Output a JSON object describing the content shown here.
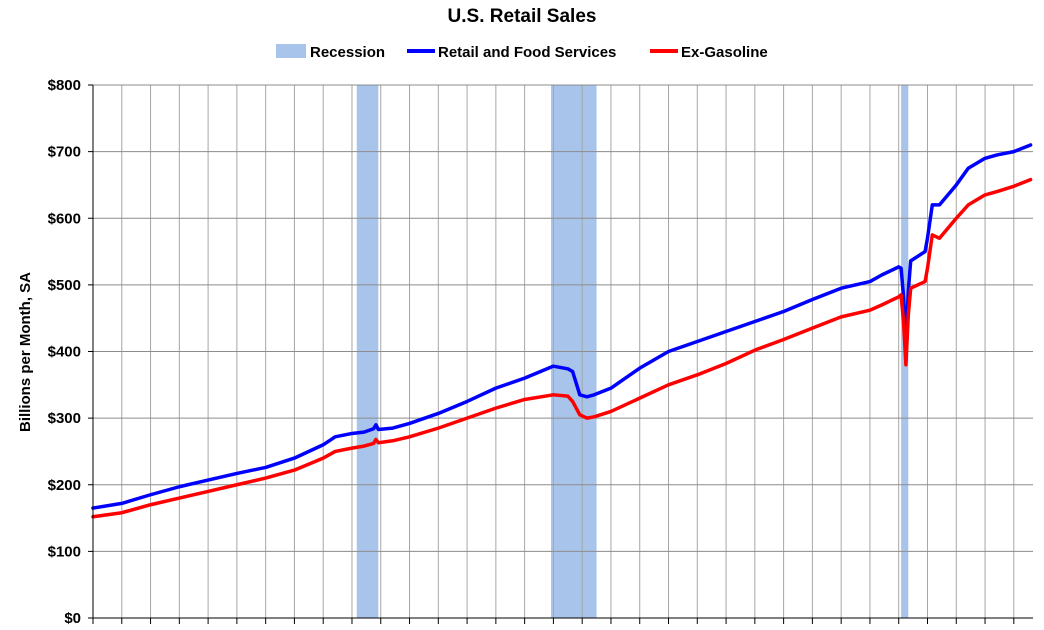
{
  "chart_data": {
    "type": "line",
    "title": "U.S. Retail Sales",
    "ylabel": "Billions per Month, SA",
    "ylim": [
      0,
      800
    ],
    "yticks": [
      0,
      100,
      200,
      300,
      400,
      500,
      600,
      700,
      800
    ],
    "ytick_labels": [
      "$0",
      "$100",
      "$200",
      "$300",
      "$400",
      "$500",
      "$600",
      "$700",
      "$800"
    ],
    "xlim": [
      "1992-01",
      "2024-09"
    ],
    "vertical_gridlines": "yearly",
    "horizontal_gridlines": true,
    "legend_position": "top-center",
    "recessions": [
      {
        "start": "2001-03",
        "end": "2001-11"
      },
      {
        "start": "2007-12",
        "end": "2009-06"
      },
      {
        "start": "2020-02",
        "end": "2020-04"
      }
    ],
    "series": [
      {
        "name": "Retail and Food Services",
        "color": "#0000ff",
        "points": [
          [
            "1992-01",
            165
          ],
          [
            "1993-01",
            172
          ],
          [
            "1994-01",
            185
          ],
          [
            "1995-01",
            197
          ],
          [
            "1996-01",
            207
          ],
          [
            "1997-01",
            217
          ],
          [
            "1998-01",
            226
          ],
          [
            "1999-01",
            240
          ],
          [
            "2000-01",
            260
          ],
          [
            "2000-06",
            272
          ],
          [
            "2001-01",
            277
          ],
          [
            "2001-06",
            279
          ],
          [
            "2001-10",
            284
          ],
          [
            "2001-11",
            290
          ],
          [
            "2001-12",
            283
          ],
          [
            "2002-06",
            285
          ],
          [
            "2003-01",
            292
          ],
          [
            "2004-01",
            307
          ],
          [
            "2005-01",
            325
          ],
          [
            "2006-01",
            345
          ],
          [
            "2007-01",
            360
          ],
          [
            "2008-01",
            378
          ],
          [
            "2008-07",
            374
          ],
          [
            "2008-09",
            370
          ],
          [
            "2008-12",
            335
          ],
          [
            "2009-03",
            332
          ],
          [
            "2009-06",
            335
          ],
          [
            "2010-01",
            345
          ],
          [
            "2011-01",
            375
          ],
          [
            "2012-01",
            400
          ],
          [
            "2013-01",
            415
          ],
          [
            "2014-01",
            430
          ],
          [
            "2015-01",
            445
          ],
          [
            "2016-01",
            460
          ],
          [
            "2017-01",
            478
          ],
          [
            "2018-01",
            495
          ],
          [
            "2019-01",
            505
          ],
          [
            "2019-06",
            515
          ],
          [
            "2020-01",
            527
          ],
          [
            "2020-02",
            525
          ],
          [
            "2020-03",
            483
          ],
          [
            "2020-04",
            411
          ],
          [
            "2020-05",
            491
          ],
          [
            "2020-06",
            536
          ],
          [
            "2020-12",
            550
          ],
          [
            "2021-01",
            570
          ],
          [
            "2021-03",
            620
          ],
          [
            "2021-06",
            620
          ],
          [
            "2022-01",
            650
          ],
          [
            "2022-06",
            675
          ],
          [
            "2023-01",
            690
          ],
          [
            "2023-06",
            695
          ],
          [
            "2024-01",
            700
          ],
          [
            "2024-08",
            710
          ]
        ]
      },
      {
        "name": "Ex-Gasoline",
        "color": "#ff0000",
        "points": [
          [
            "1992-01",
            152
          ],
          [
            "1993-01",
            158
          ],
          [
            "1994-01",
            170
          ],
          [
            "1995-01",
            180
          ],
          [
            "1996-01",
            190
          ],
          [
            "1997-01",
            200
          ],
          [
            "1998-01",
            210
          ],
          [
            "1999-01",
            222
          ],
          [
            "2000-01",
            240
          ],
          [
            "2000-06",
            250
          ],
          [
            "2001-01",
            255
          ],
          [
            "2001-06",
            258
          ],
          [
            "2001-10",
            262
          ],
          [
            "2001-11",
            268
          ],
          [
            "2001-12",
            263
          ],
          [
            "2002-06",
            266
          ],
          [
            "2003-01",
            272
          ],
          [
            "2004-01",
            285
          ],
          [
            "2005-01",
            300
          ],
          [
            "2006-01",
            315
          ],
          [
            "2007-01",
            328
          ],
          [
            "2008-01",
            335
          ],
          [
            "2008-07",
            333
          ],
          [
            "2008-09",
            325
          ],
          [
            "2008-12",
            305
          ],
          [
            "2009-03",
            300
          ],
          [
            "2009-06",
            302
          ],
          [
            "2010-01",
            310
          ],
          [
            "2011-01",
            330
          ],
          [
            "2012-01",
            350
          ],
          [
            "2013-01",
            365
          ],
          [
            "2014-01",
            382
          ],
          [
            "2015-01",
            402
          ],
          [
            "2016-01",
            418
          ],
          [
            "2017-01",
            435
          ],
          [
            "2018-01",
            452
          ],
          [
            "2019-01",
            462
          ],
          [
            "2019-06",
            470
          ],
          [
            "2020-01",
            482
          ],
          [
            "2020-02",
            485
          ],
          [
            "2020-03",
            445
          ],
          [
            "2020-04",
            380
          ],
          [
            "2020-05",
            455
          ],
          [
            "2020-06",
            495
          ],
          [
            "2020-12",
            505
          ],
          [
            "2021-01",
            525
          ],
          [
            "2021-03",
            575
          ],
          [
            "2021-06",
            570
          ],
          [
            "2022-01",
            600
          ],
          [
            "2022-06",
            620
          ],
          [
            "2023-01",
            635
          ],
          [
            "2023-06",
            640
          ],
          [
            "2024-01",
            648
          ],
          [
            "2024-08",
            658
          ]
        ]
      }
    ]
  }
}
